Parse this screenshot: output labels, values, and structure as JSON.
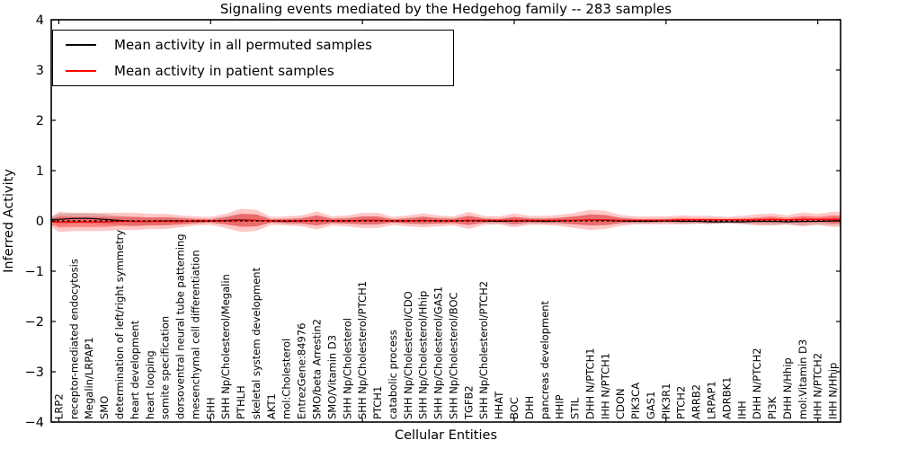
{
  "title": "Signaling events mediated by the Hedgehog family -- 283 samples",
  "legend": {
    "items": [
      {
        "label": "Mean activity in all permuted samples",
        "color": "#000000"
      },
      {
        "label": "Mean activity in patient samples",
        "color": "#ff0000"
      }
    ]
  },
  "colors": {
    "patient": "#ff0000",
    "permuted_line": "#000000",
    "permuted_band": "#999999",
    "axis": "#000000"
  },
  "chart_data": {
    "type": "violin",
    "title": "Signaling events mediated by the Hedgehog family -- 283 samples",
    "xlabel": "Cellular Entities",
    "ylabel": "Inferred Activity",
    "ylim": [
      -4,
      4
    ],
    "yticks": [
      -4,
      -3,
      -2,
      -1,
      0,
      1,
      2,
      3,
      4
    ],
    "xtick_indices": [
      0,
      10,
      20,
      30,
      40,
      50
    ],
    "grid": false,
    "legend_position": "upper left",
    "categories": [
      "LRP2",
      "receptor-mediated endocytosis",
      "Megalin/LRPAP1",
      "SMO",
      "determination of left/right symmetry",
      "heart development",
      "heart looping",
      "somite specification",
      "dorsoventral neural tube patterning",
      "mesenchymal cell differentiation",
      "SHH",
      "SHH Np/Cholesterol/Megalin",
      "PTHLH",
      "skeletal system development",
      "AKT1",
      "mol:Cholesterol",
      "EntrezGene:84976",
      "SMO/beta Arrestin2",
      "SMO/Vitamin D3",
      "SHH Np/Cholesterol",
      "SHH Np/Cholesterol/PTCH1",
      "PTCH1",
      "catabolic process",
      "SHH Np/Cholesterol/CDO",
      "SHH Np/Cholesterol/Hhip",
      "SHH Np/Cholesterol/GAS1",
      "SHH Np/Cholesterol/BOC",
      "TGFB2",
      "SHH Np/Cholesterol/PTCH2",
      "HHAT",
      "BOC",
      "DHH",
      "pancreas development",
      "HHIP",
      "STIL",
      "DHH N/PTCH1",
      "IHH N/PTCH1",
      "CDON",
      "PIK3CA",
      "GAS1",
      "PIK3R1",
      "PTCH2",
      "ARRB2",
      "LRPAP1",
      "ADRBK1",
      "IHH",
      "DHH N/PTCH2",
      "PI3K",
      "DHH N/Hhip",
      "mol:Vitamin D3",
      "IHH N/PTCH2",
      "IHH N/Hhip"
    ],
    "series": [
      {
        "name": "permuted-band",
        "type": "band",
        "color": "#999999",
        "opacity": 0.4,
        "center": [
          0.03,
          0.05,
          0.05,
          0.03,
          0.01,
          -0.01,
          -0.01,
          0.0,
          0.0,
          -0.01,
          0.0,
          0.01,
          0.02,
          0.01,
          0.0,
          -0.01,
          0.0,
          0.01,
          0.0,
          0.0,
          0.01,
          0.01,
          0.0,
          0.0,
          0.01,
          0.0,
          0.0,
          0.01,
          0.0,
          -0.01,
          0.0,
          0.0,
          -0.01,
          0.0,
          0.01,
          0.02,
          0.01,
          0.0,
          -0.01,
          -0.01,
          0.0,
          -0.01,
          -0.01,
          -0.02,
          -0.02,
          -0.02,
          -0.01,
          -0.01,
          -0.02,
          -0.01,
          -0.01,
          0.0
        ],
        "halfwidth": [
          0.11,
          0.1,
          0.1,
          0.1,
          0.09,
          0.09,
          0.08,
          0.08,
          0.07,
          0.05,
          0.04,
          0.08,
          0.12,
          0.12,
          0.04,
          0.05,
          0.06,
          0.1,
          0.05,
          0.06,
          0.08,
          0.08,
          0.04,
          0.06,
          0.08,
          0.06,
          0.05,
          0.09,
          0.05,
          0.04,
          0.08,
          0.05,
          0.05,
          0.06,
          0.08,
          0.11,
          0.1,
          0.06,
          0.04,
          0.04,
          0.04,
          0.05,
          0.04,
          0.04,
          0.03,
          0.04,
          0.06,
          0.07,
          0.05,
          0.08,
          0.06,
          0.08
        ]
      },
      {
        "name": "patient-band-outer",
        "type": "band",
        "color": "#ff0000",
        "opacity": 0.22,
        "center": [
          -0.02,
          -0.02,
          -0.02,
          -0.02,
          -0.01,
          -0.01,
          -0.01,
          -0.01,
          -0.01,
          0.0,
          0.0,
          0.0,
          0.01,
          0.01,
          0.0,
          0.0,
          0.0,
          0.01,
          0.0,
          0.0,
          0.01,
          0.01,
          0.0,
          0.0,
          0.01,
          0.0,
          0.0,
          0.01,
          0.01,
          0.01,
          0.01,
          0.01,
          0.01,
          0.01,
          0.01,
          0.02,
          0.02,
          0.01,
          0.01,
          0.01,
          0.01,
          0.02,
          0.02,
          0.02,
          0.02,
          0.02,
          0.02,
          0.03,
          0.02,
          0.03,
          0.03,
          0.03
        ],
        "halfwidth": [
          0.2,
          0.18,
          0.18,
          0.18,
          0.17,
          0.17,
          0.15,
          0.15,
          0.12,
          0.09,
          0.08,
          0.14,
          0.23,
          0.21,
          0.08,
          0.09,
          0.11,
          0.18,
          0.09,
          0.11,
          0.15,
          0.15,
          0.08,
          0.11,
          0.14,
          0.11,
          0.09,
          0.17,
          0.09,
          0.08,
          0.14,
          0.09,
          0.09,
          0.11,
          0.15,
          0.2,
          0.18,
          0.11,
          0.08,
          0.08,
          0.08,
          0.09,
          0.08,
          0.08,
          0.06,
          0.08,
          0.11,
          0.12,
          0.09,
          0.14,
          0.11,
          0.15
        ]
      },
      {
        "name": "patient-band-inner",
        "type": "band",
        "color": "#ff0000",
        "opacity": 0.35,
        "center": [
          -0.02,
          -0.02,
          -0.02,
          -0.02,
          -0.01,
          -0.01,
          -0.01,
          -0.01,
          -0.01,
          0.0,
          0.0,
          0.0,
          0.01,
          0.01,
          0.0,
          0.0,
          0.0,
          0.01,
          0.0,
          0.0,
          0.01,
          0.01,
          0.0,
          0.0,
          0.01,
          0.0,
          0.0,
          0.01,
          0.01,
          0.01,
          0.01,
          0.01,
          0.01,
          0.01,
          0.01,
          0.02,
          0.02,
          0.01,
          0.01,
          0.01,
          0.01,
          0.02,
          0.02,
          0.02,
          0.02,
          0.02,
          0.02,
          0.03,
          0.02,
          0.03,
          0.03,
          0.03
        ],
        "halfwidth": [
          0.11,
          0.1,
          0.1,
          0.1,
          0.09,
          0.09,
          0.08,
          0.08,
          0.06,
          0.04,
          0.03,
          0.07,
          0.13,
          0.12,
          0.03,
          0.04,
          0.05,
          0.1,
          0.04,
          0.05,
          0.08,
          0.08,
          0.03,
          0.05,
          0.07,
          0.05,
          0.04,
          0.09,
          0.04,
          0.03,
          0.07,
          0.04,
          0.04,
          0.05,
          0.08,
          0.11,
          0.1,
          0.05,
          0.03,
          0.03,
          0.03,
          0.04,
          0.03,
          0.03,
          0.02,
          0.03,
          0.05,
          0.06,
          0.04,
          0.07,
          0.05,
          0.08
        ]
      },
      {
        "name": "permuted-mean-line",
        "type": "line",
        "color": "#000000",
        "width": 1.2,
        "y": [
          0.03,
          0.05,
          0.05,
          0.03,
          0.01,
          -0.01,
          -0.01,
          0.0,
          0.0,
          -0.01,
          0.0,
          0.01,
          0.02,
          0.01,
          0.0,
          -0.01,
          0.0,
          0.01,
          0.0,
          0.0,
          0.01,
          0.01,
          0.0,
          0.0,
          0.01,
          0.0,
          0.0,
          0.01,
          0.0,
          -0.01,
          0.0,
          0.0,
          -0.01,
          0.0,
          0.01,
          0.02,
          0.01,
          0.0,
          -0.01,
          -0.01,
          0.0,
          -0.01,
          -0.01,
          -0.02,
          -0.02,
          -0.02,
          -0.01,
          -0.01,
          -0.02,
          -0.01,
          -0.01,
          0.0
        ]
      },
      {
        "name": "patient-mean-line",
        "type": "line",
        "color": "#ff0000",
        "width": 1.5,
        "y": [
          -0.02,
          -0.02,
          -0.02,
          -0.02,
          -0.01,
          -0.01,
          -0.01,
          -0.01,
          -0.01,
          0.0,
          0.0,
          0.0,
          0.01,
          0.01,
          0.0,
          0.0,
          0.0,
          0.01,
          0.0,
          0.0,
          0.01,
          0.01,
          0.0,
          0.0,
          0.01,
          0.0,
          0.0,
          0.01,
          0.01,
          0.01,
          0.01,
          0.01,
          0.01,
          0.01,
          0.01,
          0.02,
          0.02,
          0.01,
          0.01,
          0.01,
          0.01,
          0.02,
          0.02,
          0.02,
          0.02,
          0.02,
          0.02,
          0.03,
          0.02,
          0.03,
          0.03,
          0.03
        ]
      },
      {
        "name": "zero-line",
        "type": "hline",
        "color": "#000000",
        "style": "dashed",
        "y": 0
      }
    ]
  }
}
